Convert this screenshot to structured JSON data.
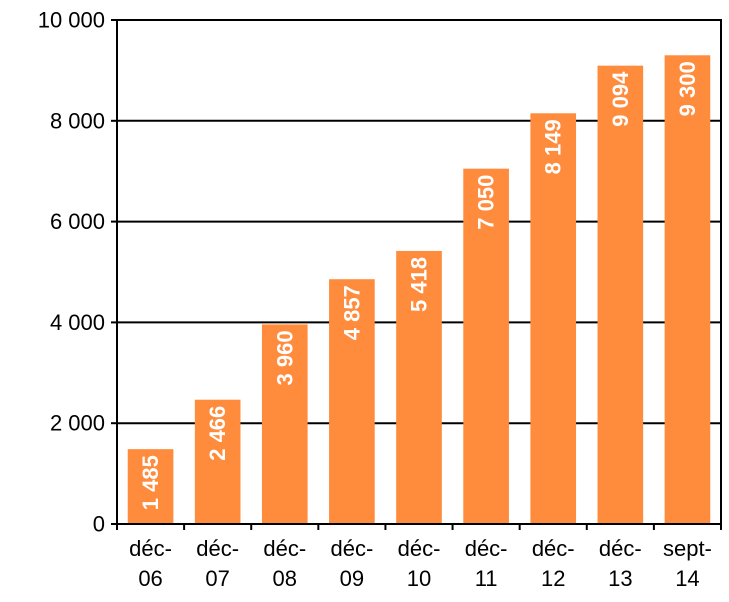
{
  "chart_data": {
    "type": "bar",
    "categories": [
      [
        "déc-",
        "06"
      ],
      [
        "déc-",
        "07"
      ],
      [
        "déc-",
        "08"
      ],
      [
        "déc-",
        "09"
      ],
      [
        "déc-",
        "10"
      ],
      [
        "déc-",
        "11"
      ],
      [
        "déc-",
        "12"
      ],
      [
        "déc-",
        "13"
      ],
      [
        "sept-",
        "14"
      ]
    ],
    "values": [
      1485,
      2466,
      3960,
      4857,
      5418,
      7050,
      8149,
      9094,
      9300
    ],
    "data_labels": [
      "1 485",
      "2 466",
      "3 960",
      "4 857",
      "5 418",
      "7 050",
      "8 149",
      "9 094",
      "9 300"
    ],
    "y_ticks": [
      0,
      2000,
      4000,
      6000,
      8000,
      10000
    ],
    "y_tick_labels": [
      "0",
      "2 000",
      "4 000",
      "6 000",
      "8 000",
      "10 000"
    ],
    "ylim": [
      0,
      10000
    ],
    "title": "",
    "xlabel": "",
    "ylabel": "",
    "grid": "horizontal",
    "legend": "none",
    "colors": {
      "bar": "#FF8B3D",
      "grid": "#000000",
      "data_label": "#FFFFFF"
    }
  }
}
